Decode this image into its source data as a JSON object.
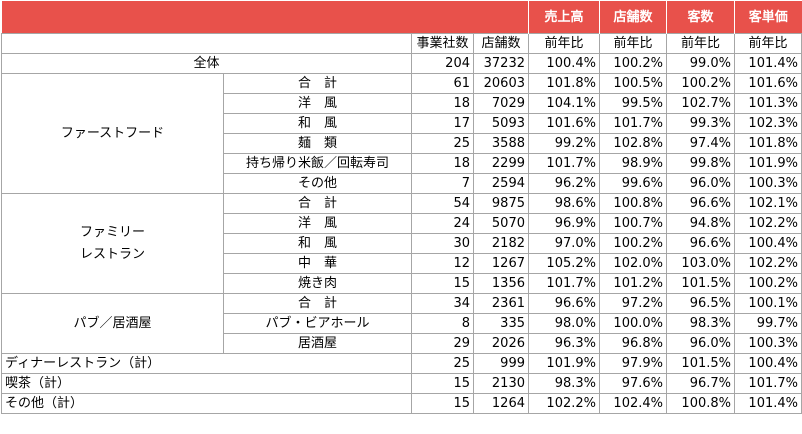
{
  "header": {
    "top": [
      "売上高",
      "店舗数",
      "客数",
      "客単価"
    ],
    "sub": [
      "事業社数",
      "店舗数",
      "前年比",
      "前年比",
      "前年比",
      "前年比"
    ]
  },
  "total": {
    "label": "全体",
    "values": [
      "204",
      "37232",
      "100.4%",
      "100.2%",
      "99.0%",
      "101.4%"
    ]
  },
  "groups": [
    {
      "name_lines": [
        "ファーストフード"
      ],
      "rows": [
        {
          "label": "合　計",
          "values": [
            "61",
            "20603",
            "101.8%",
            "100.5%",
            "100.2%",
            "101.6%"
          ]
        },
        {
          "label": "洋　風",
          "values": [
            "18",
            "7029",
            "104.1%",
            "99.5%",
            "102.7%",
            "101.3%"
          ]
        },
        {
          "label": "和　風",
          "values": [
            "17",
            "5093",
            "101.6%",
            "101.7%",
            "99.3%",
            "102.3%"
          ]
        },
        {
          "label": "麺　類",
          "values": [
            "25",
            "3588",
            "99.2%",
            "102.8%",
            "97.4%",
            "101.8%"
          ]
        },
        {
          "label": "持ち帰り米飯／回転寿司",
          "values": [
            "18",
            "2299",
            "101.7%",
            "98.9%",
            "99.8%",
            "101.9%"
          ]
        },
        {
          "label": "その他",
          "values": [
            "7",
            "2594",
            "96.2%",
            "99.6%",
            "96.0%",
            "100.3%"
          ]
        }
      ]
    },
    {
      "name_lines": [
        "ファミリー",
        "レストラン"
      ],
      "rows": [
        {
          "label": "合　計",
          "values": [
            "54",
            "9875",
            "98.6%",
            "100.8%",
            "96.6%",
            "102.1%"
          ]
        },
        {
          "label": "洋　風",
          "values": [
            "24",
            "5070",
            "96.9%",
            "100.7%",
            "94.8%",
            "102.2%"
          ]
        },
        {
          "label": "和　風",
          "values": [
            "30",
            "2182",
            "97.0%",
            "100.2%",
            "96.6%",
            "100.4%"
          ]
        },
        {
          "label": "中　華",
          "values": [
            "12",
            "1267",
            "105.2%",
            "102.0%",
            "103.0%",
            "102.2%"
          ]
        },
        {
          "label": "焼き肉",
          "values": [
            "15",
            "1356",
            "101.7%",
            "101.2%",
            "101.5%",
            "100.2%"
          ]
        }
      ]
    },
    {
      "name_lines": [
        "パブ／居酒屋"
      ],
      "rows": [
        {
          "label": "合　計",
          "values": [
            "34",
            "2361",
            "96.6%",
            "97.2%",
            "96.5%",
            "100.1%"
          ]
        },
        {
          "label": "パブ・ビアホール",
          "values": [
            "8",
            "335",
            "98.0%",
            "100.0%",
            "98.3%",
            "99.7%"
          ]
        },
        {
          "label": "居酒屋",
          "values": [
            "29",
            "2026",
            "96.3%",
            "96.8%",
            "96.0%",
            "100.3%"
          ]
        }
      ]
    }
  ],
  "singles": [
    {
      "label": "ディナーレストラン（計）",
      "values": [
        "25",
        "999",
        "101.9%",
        "97.9%",
        "101.5%",
        "100.4%"
      ]
    },
    {
      "label": "喫茶（計）",
      "values": [
        "15",
        "2130",
        "98.3%",
        "97.6%",
        "96.7%",
        "101.7%"
      ]
    },
    {
      "label": "その他（計）",
      "values": [
        "15",
        "1264",
        "102.2%",
        "102.4%",
        "100.8%",
        "101.4%"
      ]
    }
  ]
}
